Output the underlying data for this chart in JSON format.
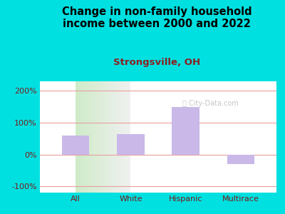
{
  "title": "Change in non-family household\nincome between 2000 and 2022",
  "subtitle": "Strongsville, OH",
  "categories": [
    "All",
    "White",
    "Hispanic",
    "Multirace"
  ],
  "values": [
    60,
    65,
    150,
    -30
  ],
  "bar_color": "#c9b8e8",
  "outer_bg": "#00e0e0",
  "plot_bg_left": "#ceebc8",
  "plot_bg_right": "#f0f0f0",
  "title_fontsize": 10.5,
  "subtitle_fontsize": 9.5,
  "subtitle_color": "#8b2020",
  "tick_label_color": "#7a1a1a",
  "ylim": [
    -120,
    230
  ],
  "yticks": [
    -100,
    0,
    100,
    200
  ],
  "ytick_labels": [
    "-100%",
    "0%",
    "100%",
    "200%"
  ],
  "gridline_color": "#e8a0a0",
  "watermark": "City-Data.com"
}
